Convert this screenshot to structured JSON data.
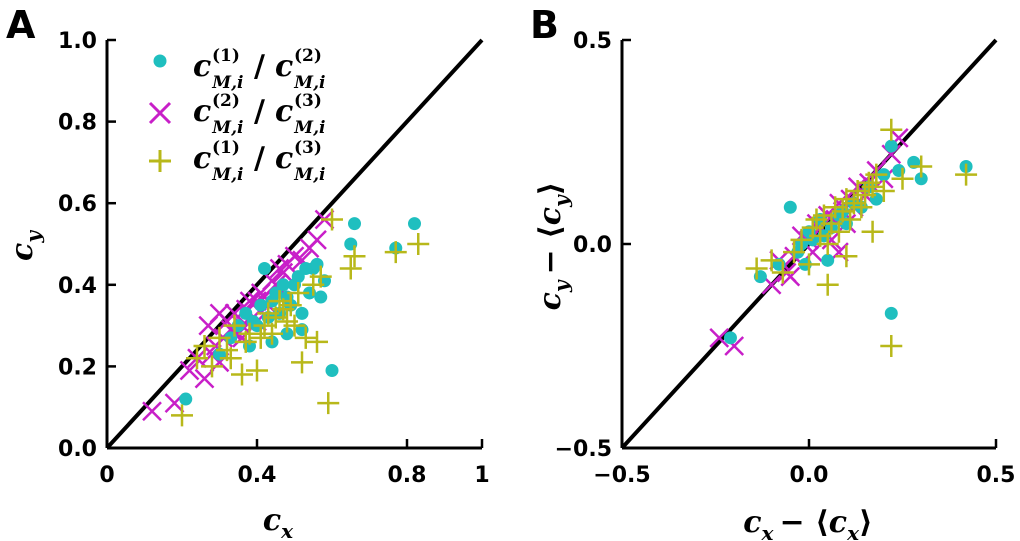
{
  "colors": {
    "series1": "#1fbfbf",
    "series2": "#c81fc8",
    "series3": "#b8b81a",
    "axis": "#000000",
    "identity_line": "#000000"
  },
  "legend": {
    "placement": "top-left",
    "entries": [
      {
        "series": "series1",
        "num_sym": "c",
        "num_sub": "M,i",
        "num_sup": "(1)",
        "sep": "/",
        "den_sym": "c",
        "den_sub": "M,i",
        "den_sup": "(2)"
      },
      {
        "series": "series2",
        "num_sym": "c",
        "num_sub": "M,i",
        "num_sup": "(2)",
        "sep": "/",
        "den_sym": "c",
        "den_sub": "M,i",
        "den_sup": "(3)"
      },
      {
        "series": "series3",
        "num_sym": "c",
        "num_sub": "M,i",
        "num_sup": "(1)",
        "sep": "/",
        "den_sym": "c",
        "den_sub": "M,i",
        "den_sup": "(3)"
      }
    ]
  },
  "chart_data": [
    {
      "panel": "A",
      "type": "scatter",
      "title": "",
      "xlabel": {
        "base": "c",
        "sub": "x"
      },
      "ylabel": {
        "base": "c",
        "sub": "y"
      },
      "xlim": [
        0,
        1
      ],
      "ylim": [
        0,
        1
      ],
      "xticks": [
        0,
        0.4,
        0.8,
        1
      ],
      "xtick_labels": [
        "0",
        "0.4",
        "0.8",
        "1"
      ],
      "yticks": [
        0,
        0.2,
        0.4,
        0.6,
        0.8,
        1.0
      ],
      "ytick_labels": [
        "0.0",
        "0.2",
        "0.4",
        "0.6",
        "0.8",
        "1.0"
      ],
      "reference_line": "y = x",
      "series": [
        {
          "name": "series1",
          "marker": "circle",
          "x": [
            0.21,
            0.3,
            0.33,
            0.35,
            0.37,
            0.38,
            0.4,
            0.41,
            0.42,
            0.43,
            0.44,
            0.45,
            0.46,
            0.47,
            0.48,
            0.49,
            0.5,
            0.51,
            0.52,
            0.53,
            0.54,
            0.55,
            0.56,
            0.57,
            0.58,
            0.6,
            0.65,
            0.66,
            0.77,
            0.82,
            0.52,
            0.48,
            0.44,
            0.39
          ],
          "y": [
            0.12,
            0.23,
            0.27,
            0.3,
            0.33,
            0.25,
            0.3,
            0.35,
            0.44,
            0.32,
            0.36,
            0.38,
            0.33,
            0.4,
            0.37,
            0.35,
            0.4,
            0.42,
            0.29,
            0.44,
            0.38,
            0.44,
            0.45,
            0.37,
            0.41,
            0.19,
            0.5,
            0.55,
            0.49,
            0.55,
            0.33,
            0.28,
            0.26,
            0.31
          ]
        },
        {
          "name": "series2",
          "marker": "x",
          "x": [
            0.12,
            0.18,
            0.22,
            0.24,
            0.26,
            0.27,
            0.28,
            0.29,
            0.3,
            0.31,
            0.32,
            0.33,
            0.34,
            0.35,
            0.36,
            0.37,
            0.38,
            0.39,
            0.4,
            0.41,
            0.42,
            0.43,
            0.44,
            0.45,
            0.46,
            0.47,
            0.48,
            0.5,
            0.52,
            0.54,
            0.56,
            0.58,
            0.3,
            0.36,
            0.4
          ],
          "y": [
            0.09,
            0.11,
            0.19,
            0.22,
            0.17,
            0.3,
            0.23,
            0.25,
            0.21,
            0.27,
            0.31,
            0.29,
            0.33,
            0.28,
            0.3,
            0.34,
            0.36,
            0.32,
            0.36,
            0.38,
            0.37,
            0.35,
            0.41,
            0.4,
            0.44,
            0.43,
            0.45,
            0.47,
            0.46,
            0.49,
            0.51,
            0.56,
            0.33,
            0.27,
            0.31
          ]
        },
        {
          "name": "series3",
          "marker": "plus",
          "x": [
            0.2,
            0.24,
            0.26,
            0.28,
            0.3,
            0.32,
            0.33,
            0.34,
            0.36,
            0.37,
            0.38,
            0.4,
            0.41,
            0.42,
            0.43,
            0.44,
            0.45,
            0.46,
            0.47,
            0.48,
            0.49,
            0.5,
            0.51,
            0.52,
            0.53,
            0.55,
            0.56,
            0.57,
            0.59,
            0.6,
            0.65,
            0.66,
            0.77,
            0.83
          ],
          "y": [
            0.08,
            0.22,
            0.25,
            0.2,
            0.27,
            0.24,
            0.22,
            0.3,
            0.18,
            0.26,
            0.28,
            0.19,
            0.27,
            0.3,
            0.33,
            0.28,
            0.32,
            0.36,
            0.34,
            0.31,
            0.35,
            0.3,
            0.38,
            0.21,
            0.27,
            0.4,
            0.26,
            0.42,
            0.11,
            0.56,
            0.44,
            0.47,
            0.48,
            0.5
          ]
        }
      ]
    },
    {
      "panel": "B",
      "type": "scatter",
      "title": "",
      "xlabel": {
        "base": "c",
        "sub": "x",
        "mean_prefix": "− ⟨",
        "mean_base": "c",
        "mean_sub": "x",
        "mean_suffix": "⟩"
      },
      "ylabel": {
        "base": "c",
        "sub": "y",
        "mean_prefix": "− ⟨",
        "mean_base": "c",
        "mean_sub": "y",
        "mean_suffix": "⟩"
      },
      "xlim": [
        -0.5,
        0.5
      ],
      "ylim": [
        -0.5,
        0.5
      ],
      "xticks": [
        -0.5,
        0.0,
        0.5
      ],
      "xtick_labels": [
        "−0.5",
        "0.0",
        "0.5"
      ],
      "yticks": [
        -0.5,
        0.0,
        0.5
      ],
      "ytick_labels": [
        "−0.5",
        "0.0",
        "0.5"
      ],
      "reference_line": "y = x",
      "series": [
        {
          "name": "series1",
          "marker": "circle",
          "x": [
            -0.21,
            -0.13,
            -0.08,
            -0.05,
            -0.03,
            -0.01,
            0.0,
            0.01,
            0.03,
            0.05,
            0.06,
            0.08,
            0.1,
            0.12,
            0.14,
            0.16,
            0.18,
            0.2,
            0.22,
            0.24,
            0.28,
            0.3,
            0.42,
            0.22,
            -0.02,
            0.04,
            0.09
          ],
          "y": [
            -0.23,
            -0.08,
            -0.05,
            0.09,
            -0.02,
            -0.05,
            0.03,
            0.01,
            0.06,
            -0.04,
            0.04,
            0.07,
            0.05,
            0.1,
            0.09,
            0.14,
            0.11,
            0.17,
            0.24,
            0.18,
            0.2,
            0.16,
            0.19,
            -0.17,
            0.0,
            0.02,
            0.08
          ]
        },
        {
          "name": "series2",
          "marker": "x",
          "x": [
            -0.24,
            -0.2,
            -0.1,
            -0.08,
            -0.06,
            -0.04,
            -0.02,
            0.0,
            0.01,
            0.02,
            0.03,
            0.04,
            0.05,
            0.06,
            0.07,
            0.08,
            0.09,
            0.1,
            0.11,
            0.12,
            0.13,
            0.15,
            0.16,
            0.18,
            0.2,
            0.22,
            0.24,
            0.08,
            -0.05
          ],
          "y": [
            -0.23,
            -0.25,
            -0.1,
            -0.04,
            -0.07,
            -0.03,
            0.02,
            0.01,
            -0.02,
            0.05,
            0.04,
            0.03,
            0.07,
            0.01,
            0.06,
            0.1,
            0.08,
            0.05,
            0.11,
            0.09,
            0.14,
            0.12,
            0.15,
            0.18,
            0.16,
            0.22,
            0.26,
            -0.02,
            -0.08
          ]
        },
        {
          "name": "series3",
          "marker": "plus",
          "x": [
            -0.14,
            -0.1,
            -0.07,
            -0.04,
            -0.02,
            0.0,
            0.01,
            0.02,
            0.03,
            0.04,
            0.05,
            0.06,
            0.07,
            0.08,
            0.09,
            0.1,
            0.11,
            0.12,
            0.13,
            0.14,
            0.15,
            0.16,
            0.17,
            0.18,
            0.2,
            0.22,
            0.25,
            0.3,
            0.42,
            0.22,
            0.17,
            0.05,
            0.1
          ],
          "y": [
            -0.06,
            -0.04,
            -0.07,
            -0.02,
            0.01,
            -0.05,
            0.04,
            0.06,
            0.02,
            0.07,
            0.0,
            0.05,
            0.09,
            0.03,
            0.08,
            0.11,
            0.06,
            0.1,
            0.13,
            0.09,
            0.12,
            0.15,
            0.14,
            0.17,
            0.13,
            0.28,
            0.16,
            0.19,
            0.17,
            -0.25,
            0.03,
            -0.1,
            -0.03
          ]
        }
      ]
    }
  ]
}
